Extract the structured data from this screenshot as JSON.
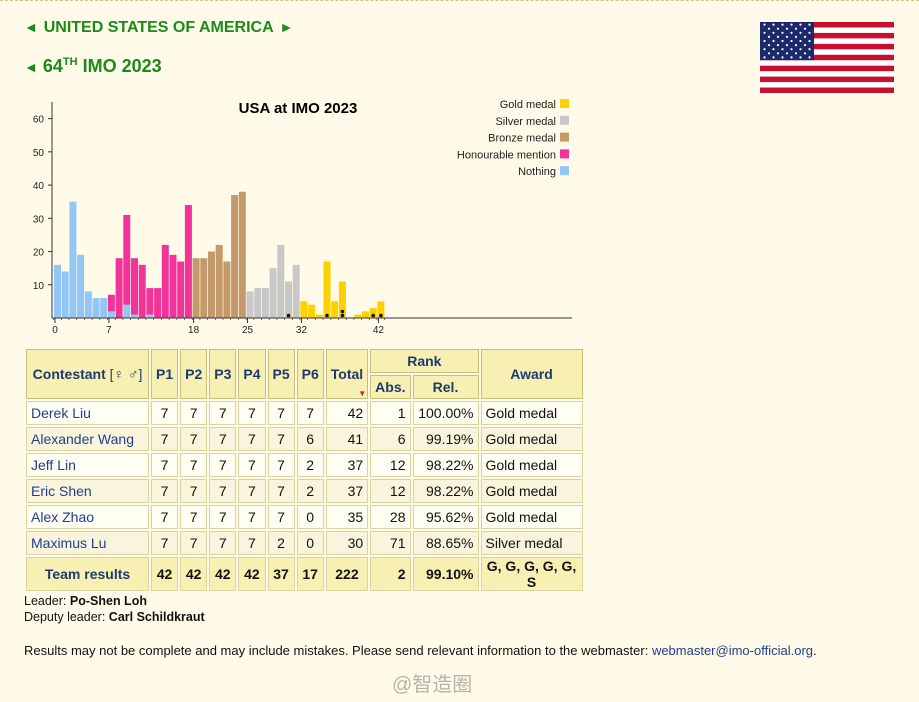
{
  "headings": {
    "country": "United States of America",
    "imo_number": "64",
    "imo_suffix": "TH",
    "imo_rest": "IMO 2023"
  },
  "colors": {
    "gold": "#fdd100",
    "silver": "#c8c8c8",
    "bronze": "#c49a6c",
    "honourable": "#f0349a",
    "nothing": "#93c6f4",
    "heading_green": "#1a8a1a"
  },
  "chart_data": {
    "type": "bar",
    "title": "USA at IMO 2023",
    "xlabel": "",
    "ylabel": "",
    "ylim": [
      0,
      65
    ],
    "yticks": [
      10,
      20,
      30,
      40,
      50,
      60
    ],
    "xticks": [
      0,
      7,
      18,
      25,
      32,
      42
    ],
    "legend_position": "top-right",
    "legend": [
      "Gold medal",
      "Silver medal",
      "Bronze medal",
      "Honourable mention",
      "Nothing"
    ],
    "categories": [
      0,
      1,
      2,
      3,
      4,
      5,
      6,
      7,
      8,
      9,
      10,
      11,
      12,
      13,
      14,
      15,
      16,
      17,
      18,
      19,
      20,
      21,
      22,
      23,
      24,
      25,
      26,
      27,
      28,
      29,
      30,
      31,
      32,
      33,
      34,
      35,
      36,
      37,
      38,
      39,
      40,
      41,
      42
    ],
    "series": [
      {
        "name": "Nothing",
        "values": [
          16,
          14,
          35,
          19,
          8,
          6,
          6,
          2,
          0,
          4,
          1,
          0,
          1,
          0,
          0,
          0,
          0,
          0,
          0,
          0,
          0,
          0,
          0,
          0,
          0,
          0,
          0,
          0,
          0,
          0,
          0,
          0,
          0,
          0,
          0,
          0,
          0,
          0,
          0,
          0,
          0,
          0,
          0
        ]
      },
      {
        "name": "Honourable mention",
        "values": [
          0,
          0,
          0,
          0,
          0,
          0,
          0,
          5,
          18,
          27,
          17,
          16,
          8,
          9,
          22,
          19,
          17,
          34,
          0,
          0,
          0,
          0,
          0,
          0,
          0,
          0,
          0,
          0,
          0,
          0,
          0,
          0,
          0,
          0,
          0,
          0,
          0,
          0,
          0,
          0,
          0,
          0,
          0
        ]
      },
      {
        "name": "Bronze medal",
        "values": [
          0,
          0,
          0,
          0,
          0,
          0,
          0,
          0,
          0,
          0,
          0,
          0,
          0,
          0,
          0,
          0,
          0,
          0,
          18,
          18,
          20,
          22,
          17,
          37,
          38,
          0,
          0,
          0,
          0,
          0,
          0,
          0,
          0,
          0,
          0,
          0,
          0,
          0,
          0,
          0,
          0,
          0,
          0
        ]
      },
      {
        "name": "Silver medal",
        "values": [
          0,
          0,
          0,
          0,
          0,
          0,
          0,
          0,
          0,
          0,
          0,
          0,
          0,
          0,
          0,
          0,
          0,
          0,
          0,
          0,
          0,
          0,
          0,
          0,
          0,
          8,
          9,
          9,
          15,
          22,
          11,
          16,
          0,
          0,
          0,
          0,
          0,
          0,
          0,
          0,
          0,
          0,
          0
        ]
      },
      {
        "name": "Gold medal",
        "values": [
          0,
          0,
          0,
          0,
          0,
          0,
          0,
          0,
          0,
          0,
          0,
          0,
          0,
          0,
          0,
          0,
          0,
          0,
          0,
          0,
          0,
          0,
          0,
          0,
          0,
          0,
          0,
          0,
          0,
          0,
          0,
          0,
          5,
          4,
          1,
          17,
          5,
          11,
          0,
          1,
          2,
          3,
          5
        ]
      }
    ],
    "usa_marks": [
      30,
      35,
      37,
      37,
      41,
      42
    ]
  },
  "table": {
    "headers": {
      "contestant": "Contestant",
      "gender": "[♀ ♂]",
      "problems": [
        "P1",
        "P2",
        "P3",
        "P4",
        "P5",
        "P6"
      ],
      "total": "Total",
      "rank": "Rank",
      "abs": "Abs.",
      "rel": "Rel.",
      "award": "Award"
    },
    "rows": [
      {
        "name": "Derek Liu",
        "scores": [
          "7",
          "7",
          "7",
          "7",
          "7",
          "7"
        ],
        "total": "42",
        "abs": "1",
        "rel": "100.00%",
        "award": "Gold medal"
      },
      {
        "name": "Alexander Wang",
        "scores": [
          "7",
          "7",
          "7",
          "7",
          "7",
          "6"
        ],
        "total": "41",
        "abs": "6",
        "rel": "99.19%",
        "award": "Gold medal"
      },
      {
        "name": "Jeff Lin",
        "scores": [
          "7",
          "7",
          "7",
          "7",
          "7",
          "2"
        ],
        "total": "37",
        "abs": "12",
        "rel": "98.22%",
        "award": "Gold medal"
      },
      {
        "name": "Eric Shen",
        "scores": [
          "7",
          "7",
          "7",
          "7",
          "7",
          "2"
        ],
        "total": "37",
        "abs": "12",
        "rel": "98.22%",
        "award": "Gold medal"
      },
      {
        "name": "Alex Zhao",
        "scores": [
          "7",
          "7",
          "7",
          "7",
          "7",
          "0"
        ],
        "total": "35",
        "abs": "28",
        "rel": "95.62%",
        "award": "Gold medal"
      },
      {
        "name": "Maximus Lu",
        "scores": [
          "7",
          "7",
          "7",
          "7",
          "2",
          "0"
        ],
        "total": "30",
        "abs": "71",
        "rel": "88.65%",
        "award": "Silver medal"
      }
    ],
    "team": {
      "label": "Team results",
      "scores": [
        "42",
        "42",
        "42",
        "42",
        "37",
        "17"
      ],
      "total": "222",
      "abs": "2",
      "rel": "99.10%",
      "award": "G, G, G, G, G, S"
    }
  },
  "leaders": {
    "leader_label": "Leader:",
    "leader_name": "Po-Shen Loh",
    "deputy_label": "Deputy leader:",
    "deputy_name": "Carl Schildkraut"
  },
  "note": {
    "text": "Results may not be complete and may include mistakes. Please send relevant information to the webmaster:",
    "email": "webmaster@imo-official.org",
    "end": "."
  },
  "watermark": "@智造圈"
}
